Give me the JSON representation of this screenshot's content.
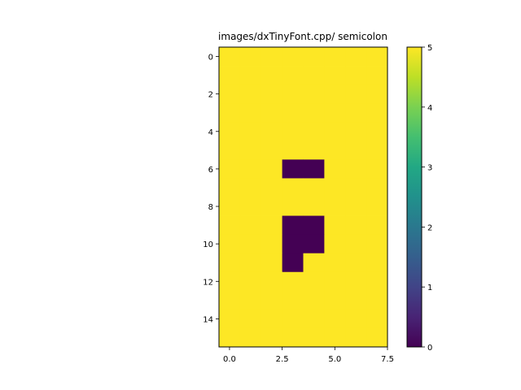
{
  "chart_data": {
    "type": "heatmap",
    "title": "images/dxTinyFont.cpp/ semicolon",
    "xlabel": "",
    "ylabel": "",
    "rows": 16,
    "cols": 8,
    "values": [
      [
        5,
        5,
        5,
        5,
        5,
        5,
        5,
        5
      ],
      [
        5,
        5,
        5,
        5,
        5,
        5,
        5,
        5
      ],
      [
        5,
        5,
        5,
        5,
        5,
        5,
        5,
        5
      ],
      [
        5,
        5,
        5,
        5,
        5,
        5,
        5,
        5
      ],
      [
        5,
        5,
        5,
        5,
        5,
        5,
        5,
        5
      ],
      [
        5,
        5,
        5,
        5,
        5,
        5,
        5,
        5
      ],
      [
        5,
        5,
        5,
        0,
        0,
        5,
        5,
        5
      ],
      [
        5,
        5,
        5,
        5,
        5,
        5,
        5,
        5
      ],
      [
        5,
        5,
        5,
        5,
        5,
        5,
        5,
        5
      ],
      [
        5,
        5,
        5,
        0,
        0,
        5,
        5,
        5
      ],
      [
        5,
        5,
        5,
        0,
        0,
        5,
        5,
        5
      ],
      [
        5,
        5,
        5,
        0,
        5,
        5,
        5,
        5
      ],
      [
        5,
        5,
        5,
        5,
        5,
        5,
        5,
        5
      ],
      [
        5,
        5,
        5,
        5,
        5,
        5,
        5,
        5
      ],
      [
        5,
        5,
        5,
        5,
        5,
        5,
        5,
        5
      ],
      [
        5,
        5,
        5,
        5,
        5,
        5,
        5,
        5
      ]
    ],
    "xlim": [
      -0.5,
      7.5
    ],
    "ylim": [
      15.5,
      -0.5
    ],
    "x_ticks": [
      0,
      2.5,
      5,
      7.5
    ],
    "x_tick_labels": [
      "0.0",
      "2.5",
      "5.0",
      "7.5"
    ],
    "y_ticks": [
      0,
      2,
      4,
      6,
      8,
      10,
      12,
      14
    ],
    "y_tick_labels": [
      "0",
      "2",
      "4",
      "6",
      "8",
      "10",
      "12",
      "14"
    ],
    "colorbar": {
      "colormap": "viridis",
      "vmin": 0,
      "vmax": 5,
      "ticks": [
        0,
        1,
        2,
        3,
        4,
        5
      ],
      "tick_labels": [
        "0",
        "1",
        "2",
        "3",
        "4",
        "5"
      ]
    },
    "grid": false
  }
}
